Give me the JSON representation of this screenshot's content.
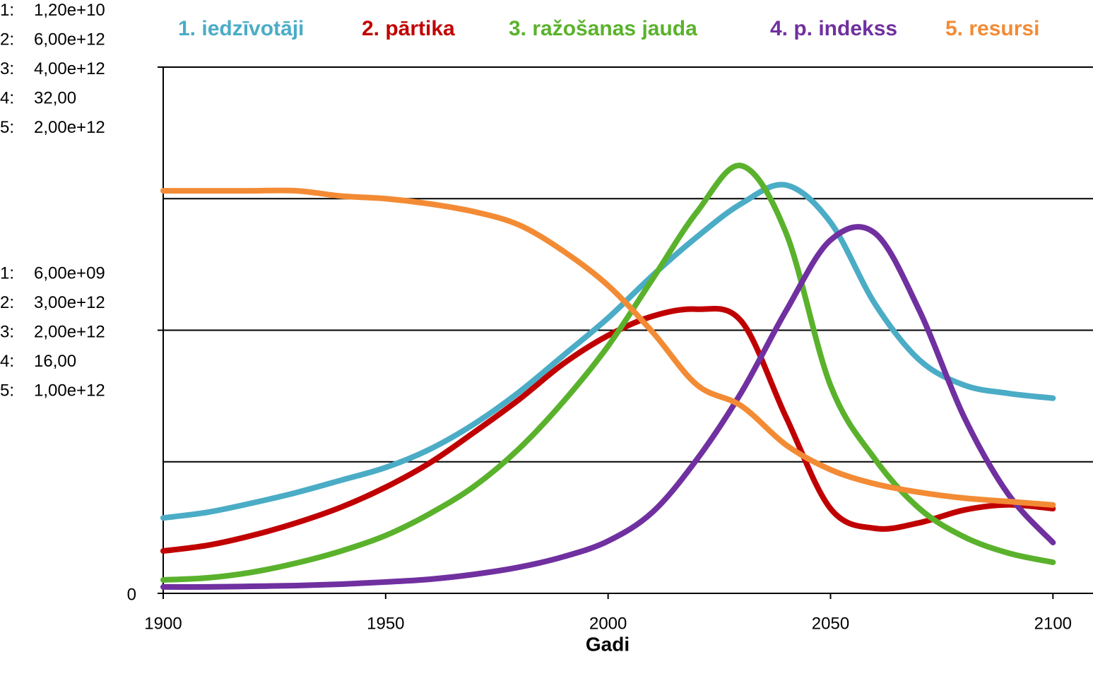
{
  "chart_data": {
    "type": "line",
    "xlabel": "Gadi",
    "x": [
      1900,
      1910,
      1920,
      1930,
      1940,
      1950,
      1960,
      1970,
      1980,
      1990,
      2000,
      2010,
      2020,
      2030,
      2040,
      2050,
      2060,
      2070,
      2080,
      2090,
      2100
    ],
    "xlim": [
      1900,
      2109
    ],
    "xticks": [
      1900,
      1950,
      2000,
      2050,
      2100
    ],
    "yticks": [
      0
    ],
    "grid": true,
    "series": [
      {
        "name": "1. iedzīvotāji",
        "color": "#4bacc6",
        "axis_label": "1:",
        "ylim": [
          0,
          12000000000
        ],
        "yticks": [
          {
            "value": 3000000000,
            "label": null
          },
          {
            "value": 6000000000,
            "label": "6,00e+09"
          },
          {
            "value": 9000000000,
            "label": null
          },
          {
            "value": 12000000000,
            "label": "1,20e+10"
          }
        ],
        "values": [
          1720000000,
          1850000000,
          2060000000,
          2300000000,
          2580000000,
          2870000000,
          3290000000,
          3870000000,
          4590000000,
          5430000000,
          6280000000,
          7250000000,
          8130000000,
          8890000000,
          9310000000,
          8460000000,
          6600000000,
          5320000000,
          4750000000,
          4560000000,
          4450000000
        ]
      },
      {
        "name": "2. pārtika",
        "color": "#c00000",
        "axis_label": "2:",
        "ylim": [
          0,
          6000000000000
        ],
        "yticks": [
          {
            "value": 3000000000000,
            "label": "3,00e+12"
          },
          {
            "value": 6000000000000,
            "label": "6,00e+12"
          }
        ],
        "values": [
          483000000000,
          548000000000,
          660000000000,
          805000000000,
          983000000000,
          1210000000000,
          1490000000000,
          1840000000000,
          2210000000000,
          2620000000000,
          2940000000000,
          3160000000000,
          3240000000000,
          3100000000000,
          2010000000000,
          966000000000,
          741000000000,
          805000000000,
          950000000000,
          1010000000000,
          966000000000
        ]
      },
      {
        "name": "3. ražošanas jauda",
        "color": "#5ab22c",
        "axis_label": "3:",
        "ylim": [
          0,
          4000000000000
        ],
        "yticks": [
          {
            "value": 2000000000000,
            "label": "2,00e+12"
          },
          {
            "value": 4000000000000,
            "label": "4,00e+12"
          }
        ],
        "values": [
          102000000000,
          118000000000,
          161000000000,
          231000000000,
          322000000000,
          440000000000,
          607000000000,
          816000000000,
          1100000000000,
          1460000000000,
          1880000000000,
          2390000000000,
          2900000000000,
          3250000000000,
          2740000000000,
          1580000000000,
          1020000000000,
          644000000000,
          430000000000,
          306000000000,
          236000000000
        ]
      },
      {
        "name": "4. p. indekss",
        "color": "#7030a0",
        "axis_label": "4:",
        "ylim": [
          0,
          32
        ],
        "yticks": [
          {
            "value": 16,
            "label": "16,00"
          },
          {
            "value": 32,
            "label": "32,00"
          }
        ],
        "values": [
          0.39,
          0.39,
          0.43,
          0.47,
          0.56,
          0.69,
          0.86,
          1.16,
          1.59,
          2.23,
          3.18,
          4.94,
          8.16,
          12.24,
          17.18,
          21.48,
          21.9,
          17.18,
          10.74,
          6.01,
          3.09
        ]
      },
      {
        "name": "5. resursi",
        "color": "#f38b35",
        "axis_label": "5:",
        "ylim": [
          0,
          2000000000000
        ],
        "yticks": [
          {
            "value": 1000000000000,
            "label": "1,00e+12"
          },
          {
            "value": 2000000000000,
            "label": "2,00e+12"
          }
        ],
        "values": [
          1530000000000,
          1530000000000,
          1530000000000,
          1530000000000,
          1510000000000,
          1500000000000,
          1480000000000,
          1450000000000,
          1400000000000,
          1300000000000,
          1170000000000,
          993000000000,
          792000000000,
          712000000000,
          564000000000,
          470000000000,
          416000000000,
          384000000000,
          362000000000,
          349000000000,
          336000000000
        ]
      }
    ]
  }
}
